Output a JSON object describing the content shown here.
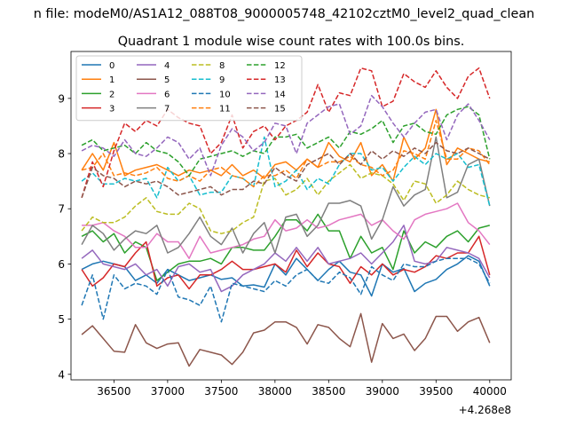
{
  "chart_data": {
    "type": "line",
    "suptitle": "n file: modeM0/AS1A12_088T08_9000005748_42102cztM0_level2_quad_clean",
    "title": "Quadrant 1 module wise count rates with 100.0s bins.",
    "xlabel": "",
    "ylabel": "",
    "x_offset_label": "+4.268e8",
    "xlim": [
      36100,
      40200
    ],
    "ylim": [
      3.9,
      9.85
    ],
    "xticks": [
      36500,
      37000,
      37500,
      38000,
      38500,
      39000,
      39500,
      40000
    ],
    "yticks": [
      4,
      5,
      6,
      7,
      8,
      9
    ],
    "x": [
      36200,
      36300,
      36400,
      36500,
      36600,
      36700,
      36800,
      36900,
      37000,
      37100,
      37200,
      37300,
      37400,
      37500,
      37600,
      37700,
      37800,
      37900,
      38000,
      38100,
      38200,
      38300,
      38400,
      38500,
      38600,
      38700,
      38800,
      38900,
      39000,
      39100,
      39200,
      39300,
      39400,
      39500,
      39600,
      39700,
      39800,
      39900,
      40000
    ],
    "legend_location": "upper left",
    "legend_columns": 4,
    "series": [
      {
        "name": "0",
        "color": "#1f77b4",
        "dash": "solid",
        "values": [
          5.9,
          6.0,
          6.05,
          6.0,
          5.95,
          5.7,
          5.8,
          5.65,
          5.9,
          5.8,
          5.7,
          5.75,
          5.8,
          5.72,
          5.75,
          5.6,
          5.62,
          5.58,
          6.0,
          5.8,
          6.1,
          5.9,
          5.7,
          5.9,
          6.05,
          5.85,
          5.8,
          5.42,
          6.0,
          5.85,
          5.92,
          5.5,
          5.65,
          5.72,
          5.9,
          6.0,
          6.15,
          6.05,
          5.6
        ]
      },
      {
        "name": "1",
        "color": "#ff7f0e",
        "dash": "solid",
        "values": [
          7.7,
          8.0,
          7.7,
          8.2,
          7.6,
          7.7,
          7.75,
          7.8,
          7.7,
          7.6,
          7.7,
          7.65,
          7.7,
          7.6,
          7.8,
          7.6,
          7.7,
          7.55,
          7.8,
          7.85,
          7.7,
          7.9,
          7.75,
          8.2,
          7.95,
          7.85,
          8.2,
          7.6,
          7.8,
          7.5,
          8.3,
          7.9,
          8.1,
          8.8,
          7.8,
          8.1,
          8.0,
          7.9,
          7.85
        ]
      },
      {
        "name": "2",
        "color": "#2ca02c",
        "dash": "solid",
        "values": [
          6.5,
          6.6,
          6.4,
          6.55,
          6.2,
          6.4,
          6.3,
          5.7,
          5.85,
          6.0,
          6.05,
          6.05,
          6.1,
          6.0,
          6.3,
          6.3,
          6.25,
          6.25,
          6.5,
          6.8,
          6.8,
          6.6,
          6.9,
          6.6,
          6.6,
          6.1,
          6.5,
          6.2,
          6.3,
          5.9,
          6.6,
          6.2,
          6.4,
          6.3,
          6.5,
          6.6,
          6.4,
          6.65,
          6.7
        ]
      },
      {
        "name": "3",
        "color": "#d62728",
        "dash": "solid",
        "values": [
          5.9,
          5.6,
          5.75,
          6.0,
          5.95,
          6.2,
          6.4,
          5.6,
          5.75,
          5.8,
          5.55,
          5.8,
          5.8,
          5.9,
          6.05,
          5.9,
          5.9,
          5.95,
          6.0,
          5.85,
          6.25,
          5.95,
          6.2,
          6.0,
          5.95,
          5.65,
          5.95,
          5.8,
          6.0,
          5.8,
          5.9,
          5.85,
          5.95,
          6.15,
          6.1,
          6.2,
          6.2,
          6.5,
          5.8
        ]
      },
      {
        "name": "4",
        "color": "#9467bd",
        "dash": "solid",
        "values": [
          6.1,
          6.25,
          6.0,
          5.95,
          5.9,
          6.0,
          5.8,
          5.9,
          5.6,
          5.95,
          6.0,
          5.85,
          5.9,
          5.5,
          5.6,
          5.8,
          5.9,
          6.0,
          6.2,
          6.05,
          6.3,
          6.05,
          6.3,
          6.0,
          6.05,
          6.1,
          6.2,
          6.0,
          6.2,
          6.4,
          6.7,
          6.05,
          6.0,
          6.05,
          6.3,
          6.25,
          6.2,
          6.1,
          5.75
        ]
      },
      {
        "name": "5",
        "color": "#8c564b",
        "dash": "solid",
        "values": [
          4.72,
          4.88,
          4.65,
          4.42,
          4.4,
          4.9,
          4.57,
          4.47,
          4.55,
          4.57,
          4.15,
          4.45,
          4.4,
          4.35,
          4.18,
          4.4,
          4.75,
          4.8,
          4.95,
          4.95,
          4.85,
          4.55,
          4.9,
          4.85,
          4.65,
          4.5,
          5.1,
          4.22,
          4.92,
          4.65,
          4.73,
          4.43,
          4.65,
          5.05,
          5.05,
          4.78,
          4.95,
          5.03,
          4.57
        ]
      },
      {
        "name": "6",
        "color": "#e377c2",
        "dash": "solid",
        "values": [
          6.7,
          6.7,
          6.75,
          6.6,
          6.5,
          6.3,
          6.3,
          6.55,
          6.4,
          6.4,
          6.1,
          6.5,
          6.2,
          6.25,
          6.3,
          6.35,
          6.45,
          6.5,
          6.8,
          6.6,
          6.65,
          6.8,
          6.65,
          6.7,
          6.8,
          6.85,
          6.9,
          6.7,
          6.8,
          6.6,
          6.45,
          6.8,
          6.9,
          6.95,
          7.0,
          7.1,
          6.75,
          6.6,
          6.35
        ]
      },
      {
        "name": "7",
        "color": "#7f7f7f",
        "dash": "solid",
        "values": [
          6.35,
          6.7,
          6.55,
          6.25,
          6.45,
          6.6,
          6.55,
          6.7,
          6.2,
          6.3,
          6.55,
          6.85,
          6.5,
          6.35,
          6.65,
          6.2,
          6.55,
          6.75,
          6.2,
          6.85,
          6.9,
          6.5,
          6.7,
          7.1,
          7.1,
          7.15,
          7.05,
          6.45,
          6.8,
          7.4,
          7.05,
          7.25,
          7.35,
          8.3,
          7.2,
          7.3,
          7.8,
          7.9,
          7.05
        ]
      },
      {
        "name": "8",
        "color": "#bcbd22",
        "dash": "dashed",
        "values": [
          6.6,
          6.85,
          6.75,
          6.75,
          6.85,
          7.05,
          7.2,
          6.95,
          6.9,
          6.9,
          7.1,
          7.0,
          6.6,
          6.55,
          6.6,
          6.75,
          6.85,
          7.5,
          7.55,
          7.25,
          7.35,
          7.55,
          7.25,
          7.5,
          7.65,
          7.8,
          7.55,
          7.65,
          7.6,
          7.45,
          7.15,
          7.5,
          7.45,
          7.1,
          7.25,
          7.5,
          7.35,
          7.25,
          7.2
        ]
      },
      {
        "name": "9",
        "color": "#17becf",
        "dash": "dashed",
        "values": [
          7.5,
          7.65,
          7.45,
          7.45,
          7.55,
          7.5,
          7.55,
          7.2,
          7.75,
          7.5,
          7.6,
          7.25,
          7.3,
          7.3,
          7.6,
          7.55,
          7.4,
          8.3,
          7.4,
          7.5,
          7.7,
          7.35,
          7.55,
          7.45,
          7.8,
          8.0,
          8.0,
          7.7,
          7.75,
          7.5,
          7.75,
          7.95,
          7.8,
          8.0,
          7.9,
          8.0,
          7.75,
          7.8,
          7.05
        ]
      },
      {
        "name": "10",
        "color": "#1f77b4",
        "dash": "dashed",
        "values": [
          5.25,
          5.8,
          5.0,
          5.8,
          5.55,
          5.65,
          5.6,
          5.45,
          5.9,
          5.4,
          5.35,
          5.25,
          5.6,
          4.95,
          5.65,
          5.6,
          5.55,
          5.5,
          5.7,
          5.6,
          5.8,
          5.9,
          5.7,
          5.65,
          5.85,
          5.75,
          5.45,
          5.95,
          5.8,
          5.7,
          6.0,
          5.95,
          5.95,
          6.05,
          6.1,
          6.1,
          6.1,
          6.0,
          5.65
        ]
      },
      {
        "name": "11",
        "color": "#ff7f0e",
        "dash": "dashed",
        "values": [
          7.7,
          7.75,
          8.0,
          7.6,
          7.65,
          7.6,
          7.65,
          7.75,
          7.55,
          7.5,
          7.6,
          7.5,
          7.7,
          7.75,
          7.6,
          7.55,
          7.4,
          7.6,
          7.6,
          7.7,
          7.55,
          7.9,
          7.75,
          7.85,
          7.85,
          7.95,
          7.8,
          7.75,
          7.6,
          7.7,
          8.05,
          8.0,
          7.9,
          8.6,
          7.9,
          7.9,
          8.1,
          8.05,
          7.8
        ]
      },
      {
        "name": "12",
        "color": "#2ca02c",
        "dash": "dashed",
        "values": [
          8.15,
          8.25,
          8.05,
          8.1,
          8.15,
          8.0,
          8.2,
          8.05,
          8.0,
          7.85,
          7.6,
          7.9,
          7.95,
          8.0,
          8.05,
          7.95,
          8.05,
          8.0,
          8.3,
          8.3,
          8.35,
          8.1,
          8.2,
          8.3,
          8.1,
          8.4,
          8.35,
          8.45,
          8.6,
          8.2,
          8.5,
          8.55,
          8.4,
          8.35,
          8.7,
          8.8,
          8.85,
          8.7,
          7.9
        ]
      },
      {
        "name": "13",
        "color": "#d62728",
        "dash": "dashed",
        "values": [
          7.2,
          7.85,
          7.4,
          8.05,
          8.55,
          8.4,
          8.6,
          8.5,
          8.8,
          8.65,
          8.55,
          8.5,
          8.0,
          8.2,
          8.7,
          8.1,
          8.4,
          8.5,
          8.25,
          8.5,
          8.6,
          8.75,
          9.25,
          8.75,
          9.1,
          9.05,
          9.55,
          9.5,
          8.85,
          8.95,
          9.45,
          9.3,
          9.2,
          9.5,
          9.2,
          9.0,
          9.4,
          9.55,
          9.0
        ]
      },
      {
        "name": "14",
        "color": "#9467bd",
        "dash": "dashed",
        "values": [
          8.05,
          8.15,
          8.1,
          7.95,
          8.25,
          8.0,
          7.95,
          8.1,
          8.3,
          8.2,
          7.9,
          8.1,
          7.6,
          8.15,
          8.45,
          8.3,
          8.05,
          8.2,
          8.55,
          8.5,
          8.0,
          8.55,
          8.7,
          8.85,
          8.9,
          8.35,
          8.5,
          9.05,
          8.85,
          8.55,
          8.3,
          8.55,
          8.75,
          8.8,
          8.25,
          8.7,
          8.9,
          8.6,
          8.25
        ]
      },
      {
        "name": "15",
        "color": "#8c564b",
        "dash": "dashed",
        "values": [
          7.2,
          7.75,
          7.6,
          7.55,
          7.4,
          7.5,
          7.45,
          7.5,
          7.4,
          7.25,
          7.3,
          7.35,
          7.4,
          7.25,
          7.35,
          7.35,
          7.5,
          7.45,
          7.75,
          7.6,
          7.5,
          7.8,
          7.9,
          8.0,
          7.8,
          8.0,
          7.8,
          8.05,
          7.9,
          8.05,
          7.95,
          8.1,
          8.0,
          8.2,
          8.05,
          8.0,
          8.1,
          8.0,
          7.9
        ]
      }
    ]
  }
}
